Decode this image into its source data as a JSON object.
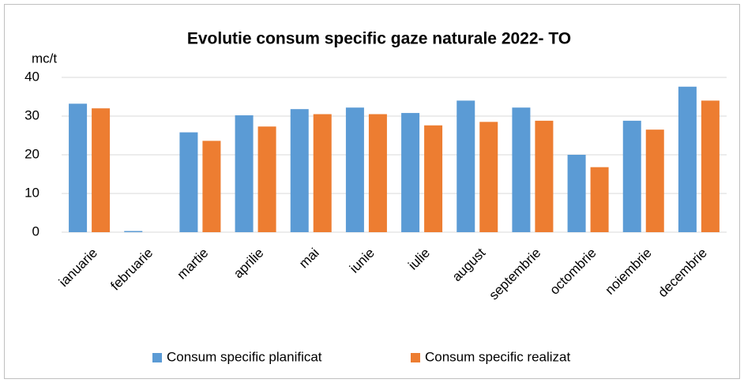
{
  "chart_data": {
    "type": "bar",
    "title": "Evolutie consum  specific gaze naturale 2022- TO",
    "y_label": "mc/t",
    "categories": [
      "ianuarie",
      "februarie",
      "martie",
      "aprilie",
      "mai",
      "iunie",
      "iulie",
      "august",
      "septembrie",
      "octombrie",
      "noiembrie",
      "decembrie"
    ],
    "series": [
      {
        "name": "Consum specific planificat",
        "color": "#5b9bd5",
        "values": [
          33.2,
          0.3,
          25.8,
          30.2,
          31.8,
          32.2,
          30.8,
          34.0,
          32.2,
          20.0,
          28.8,
          37.6
        ]
      },
      {
        "name": "Consum specific realizat",
        "color": "#ed7d31",
        "values": [
          32.0,
          0,
          23.6,
          27.3,
          30.5,
          30.5,
          27.6,
          28.5,
          28.8,
          16.8,
          26.5,
          34.0
        ]
      }
    ],
    "ylim": [
      0,
      40
    ],
    "yticks": [
      0,
      10,
      20,
      30,
      40
    ],
    "grid": true,
    "legend": "bottom"
  }
}
